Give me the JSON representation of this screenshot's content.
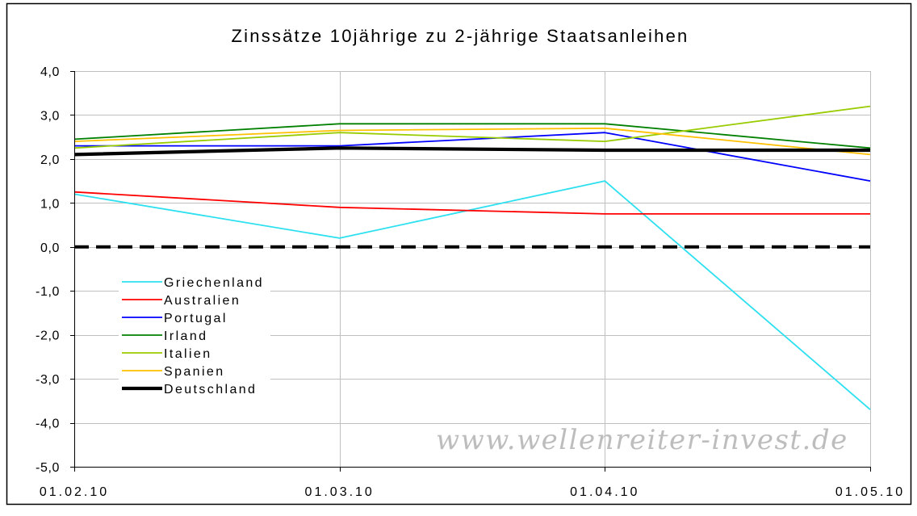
{
  "watermark": "www.wellenreiter-invest.de",
  "chart_data": {
    "type": "line",
    "title": "Zinssätze 10jährige zu 2-jährige Staatsanleihen",
    "x": [
      "01.02.10",
      "01.03.10",
      "01.04.10",
      "01.05.10"
    ],
    "ylim": [
      -5,
      4
    ],
    "yticks": [
      {
        "value": 4,
        "label": "4,0"
      },
      {
        "value": 3,
        "label": "3,0"
      },
      {
        "value": 2,
        "label": "2,0"
      },
      {
        "value": 1,
        "label": "1,0"
      },
      {
        "value": 0,
        "label": "0,0"
      },
      {
        "value": -1,
        "label": "-1,0"
      },
      {
        "value": -2,
        "label": "-2,0"
      },
      {
        "value": -3,
        "label": "-3,0"
      },
      {
        "value": -4,
        "label": "-4,0"
      },
      {
        "value": -5,
        "label": "-5,0"
      }
    ],
    "grid": true,
    "legend_position": "inside-lower-left",
    "reference_line": {
      "value": 0,
      "color": "#000000"
    },
    "series": [
      {
        "name": "Griechenland",
        "color": "#2de0f0",
        "values": [
          1.2,
          0.2,
          1.5,
          -3.7
        ]
      },
      {
        "name": "Australien",
        "color": "#ff0000",
        "values": [
          1.25,
          0.9,
          0.75,
          0.75
        ]
      },
      {
        "name": "Portugal",
        "color": "#0000ff",
        "values": [
          2.3,
          2.3,
          2.6,
          1.5
        ]
      },
      {
        "name": "Irland",
        "color": "#008000",
        "values": [
          2.45,
          2.8,
          2.8,
          2.25
        ]
      },
      {
        "name": "Italien",
        "color": "#99cc00",
        "values": [
          2.25,
          2.6,
          2.4,
          3.2
        ]
      },
      {
        "name": "Spanien",
        "color": "#ffc000",
        "values": [
          2.4,
          2.65,
          2.7,
          2.1
        ]
      },
      {
        "name": "Deutschland",
        "color": "#000000",
        "values": [
          2.1,
          2.25,
          2.2,
          2.2
        ]
      }
    ]
  }
}
